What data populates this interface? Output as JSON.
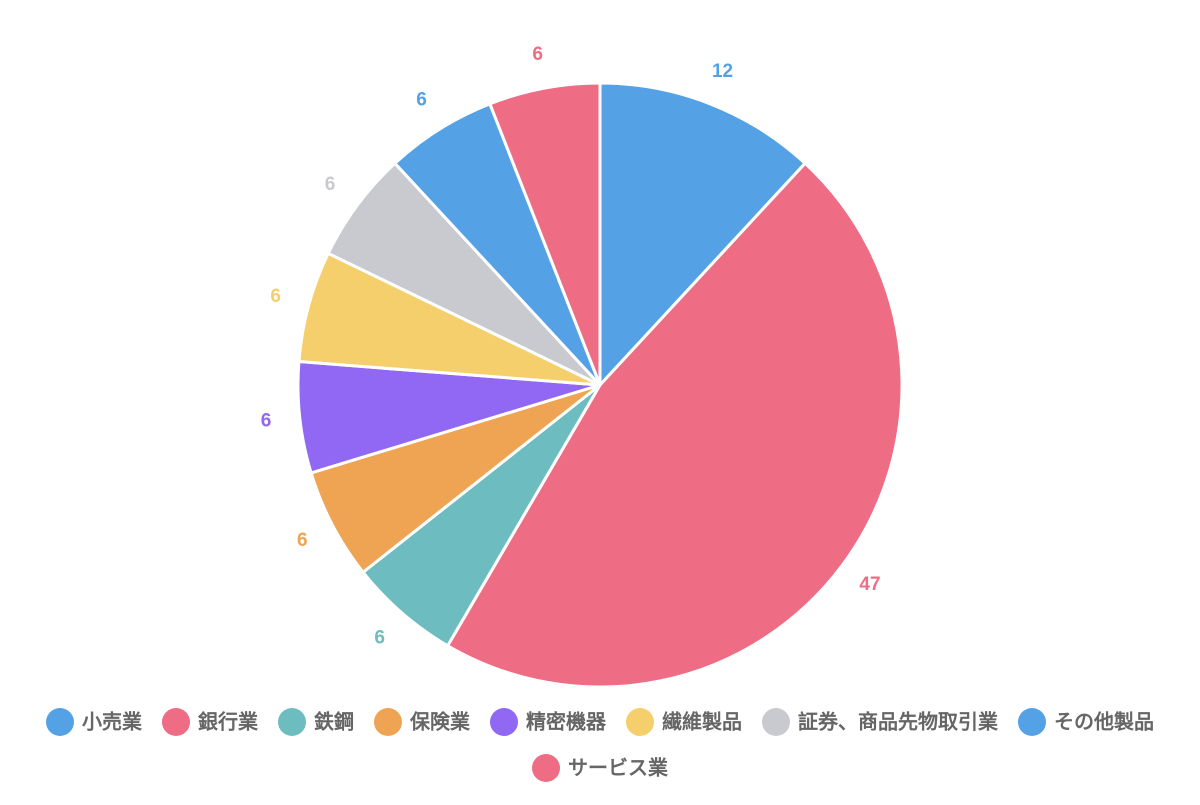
{
  "chart_data": {
    "type": "pie",
    "categories": [
      "小売業",
      "銀行業",
      "鉄鋼",
      "保険業",
      "精密機器",
      "繊維製品",
      "証券、商品先物取引業",
      "その他製品",
      "サービス業"
    ],
    "values": [
      12,
      47,
      6,
      6,
      6,
      6,
      6,
      6,
      6
    ],
    "colors": [
      "#55a1e5",
      "#ee6d85",
      "#6dbcbf",
      "#efa453",
      "#9168f3",
      "#f5cf6b",
      "#c9cacf",
      "#55a1e5",
      "#ee6d85"
    ],
    "legend": "bottom"
  }
}
